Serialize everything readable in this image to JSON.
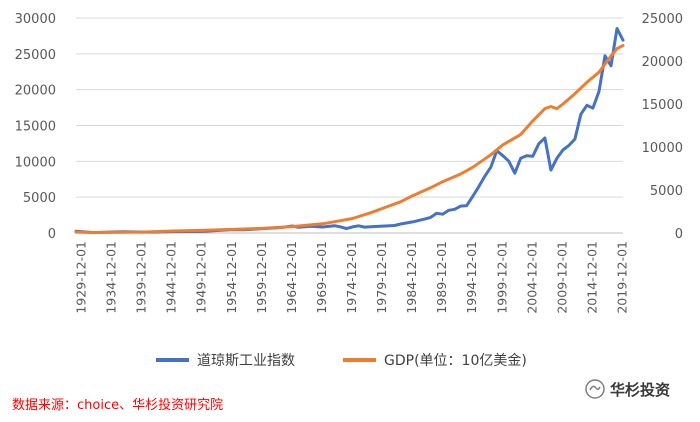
{
  "chart_data": {
    "type": "line",
    "x_tick_labels": [
      "1929-12-01",
      "1934-12-01",
      "1939-12-01",
      "1944-12-01",
      "1949-12-01",
      "1954-12-01",
      "1959-12-01",
      "1964-12-01",
      "1969-12-01",
      "1974-12-01",
      "1979-12-01",
      "1984-12-01",
      "1989-12-01",
      "1994-12-01",
      "1999-12-01",
      "2004-12-01",
      "2009-12-01",
      "2014-12-01",
      "2019-12-01"
    ],
    "x_range": [
      1929,
      2020
    ],
    "y_left": {
      "ticks": [
        0,
        5000,
        10000,
        15000,
        20000,
        25000,
        30000
      ],
      "range": [
        0,
        30000
      ]
    },
    "y_right": {
      "ticks": [
        0,
        5000,
        10000,
        15000,
        20000,
        25000
      ],
      "range": [
        0,
        25000
      ]
    },
    "gridlines": "horizontal",
    "legend_position": "bottom",
    "series": [
      {
        "name": "道琼斯工业指数",
        "axis": "left",
        "color": "#4472c4",
        "x": [
          1929,
          1932,
          1935,
          1937,
          1938,
          1940,
          1942,
          1945,
          1950,
          1955,
          1957,
          1960,
          1963,
          1965,
          1966,
          1968,
          1970,
          1972,
          1973,
          1974,
          1975,
          1976,
          1977,
          1980,
          1982,
          1983,
          1985,
          1987,
          1988,
          1989,
          1990,
          1991,
          1992,
          1993,
          1994,
          1995,
          1996,
          1997,
          1998,
          1999,
          2000,
          2001,
          2002,
          2003,
          2004,
          2005,
          2006,
          2007,
          2008,
          2009,
          2010,
          2011,
          2012,
          2013,
          2014,
          2015,
          2016,
          2017,
          2018,
          2019,
          2020
        ],
        "y": [
          250,
          60,
          140,
          180,
          150,
          130,
          120,
          190,
          230,
          480,
          440,
          610,
          760,
          970,
          790,
          940,
          840,
          1020,
          850,
          620,
          850,
          1000,
          830,
          960,
          1050,
          1260,
          1550,
          1940,
          2170,
          2750,
          2630,
          3170,
          3300,
          3750,
          3830,
          5100,
          6450,
          7900,
          9180,
          11500,
          10790,
          10020,
          8340,
          10450,
          10780,
          10720,
          12460,
          13260,
          8780,
          10430,
          11580,
          12220,
          13100,
          16580,
          17820,
          17430,
          19760,
          24720,
          23330,
          28540,
          26900
        ]
      },
      {
        "name": "GDP(单位：10亿美金)",
        "axis": "right",
        "color": "#ed7d31",
        "x": [
          1929,
          1932,
          1935,
          1940,
          1945,
          1950,
          1955,
          1960,
          1965,
          1970,
          1973,
          1975,
          1978,
          1980,
          1983,
          1985,
          1988,
          1990,
          1993,
          1995,
          1998,
          2000,
          2003,
          2005,
          2007,
          2008,
          2009,
          2010,
          2012,
          2014,
          2016,
          2018,
          2019,
          2020
        ],
        "y": [
          105,
          60,
          75,
          100,
          230,
          300,
          420,
          540,
          740,
          1070,
          1430,
          1690,
          2350,
          2860,
          3630,
          4340,
          5250,
          5960,
          6860,
          7640,
          9090,
          10250,
          11460,
          13040,
          14450,
          14710,
          14450,
          14990,
          16200,
          17520,
          18700,
          20580,
          21430,
          21800
        ]
      }
    ]
  },
  "legend": [
    "道琼斯工业指数",
    "GDP(单位：10亿美金)"
  ],
  "source_note": "数据来源：choice、华杉投资研究院",
  "watermark": {
    "text": "华杉投资",
    "icon": "wechat-logo-icon"
  }
}
